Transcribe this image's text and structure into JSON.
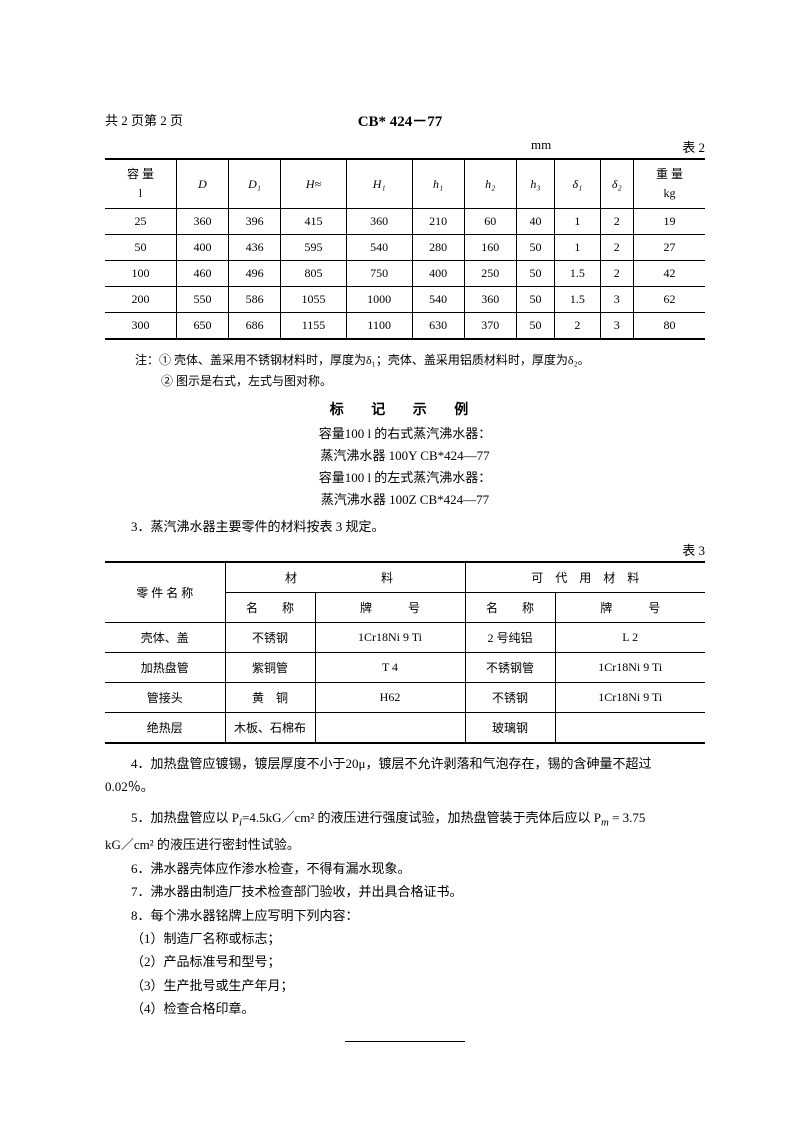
{
  "header": {
    "page_num": "共 2 页第 2 页",
    "doc_title": "CB* 424－77"
  },
  "table2": {
    "unit": "mm",
    "label": "表 2",
    "columns": [
      "容 量",
      "D",
      "D₁",
      "H≈",
      "H₁",
      "h₁",
      "h₂",
      "h₃",
      "δ₁",
      "δ₂",
      "重 量"
    ],
    "col_units_left": "l",
    "col_units_right": "kg",
    "rows": [
      [
        "25",
        "360",
        "396",
        "415",
        "360",
        "210",
        "60",
        "40",
        "1",
        "2",
        "19"
      ],
      [
        "50",
        "400",
        "436",
        "595",
        "540",
        "280",
        "160",
        "50",
        "1",
        "2",
        "27"
      ],
      [
        "100",
        "460",
        "496",
        "805",
        "750",
        "400",
        "250",
        "50",
        "1.5",
        "2",
        "42"
      ],
      [
        "200",
        "550",
        "586",
        "1055",
        "1000",
        "540",
        "360",
        "50",
        "1.5",
        "3",
        "62"
      ],
      [
        "300",
        "650",
        "686",
        "1155",
        "1100",
        "630",
        "370",
        "50",
        "2",
        "3",
        "80"
      ]
    ]
  },
  "notes": {
    "line1": "注：① 壳体、盖采用不锈钢材料时，厚度为δ₁；壳体、盖采用铝质材料时，厚度为δ₂。",
    "line2": "② 图示是右式，左式与图对称。"
  },
  "marking": {
    "title": "标 记 示 例",
    "lines": [
      "容量100 l 的右式蒸汽沸水器：",
      "蒸汽沸水器   100Y  CB*424—77",
      "容量100 l 的左式蒸汽沸水器：",
      "蒸汽沸水器   100Z  CB*424—77"
    ]
  },
  "section3": "3．蒸汽沸水器主要零件的材料按表 3 规定。",
  "table3": {
    "label": "表 3",
    "headers": {
      "part": "零 件 名 称",
      "material": "材　　　料",
      "alt": "可　代　用　材　料",
      "name": "名　　称",
      "grade": "牌　　　号"
    },
    "rows": [
      [
        "壳体、盖",
        "不锈钢",
        "1Cr18Ni 9 Ti",
        "2 号纯铝",
        "L 2"
      ],
      [
        "加热盘管",
        "紫铜管",
        "T 4",
        "不锈钢管",
        "1Cr18Ni 9 Ti"
      ],
      [
        "管接头",
        "黄　铜",
        "H62",
        "不锈钢",
        "1Cr18Ni 9 Ti"
      ],
      [
        "绝热层",
        "木板、石棉布",
        "",
        "玻璃钢",
        ""
      ]
    ]
  },
  "paragraphs": {
    "p4a": "4．加热盘管应镀锡，镀层厚度不小于20μ，镀层不允许剥落和气泡存在，锡的含砷量不超过",
    "p4b": "0.02％。",
    "p5a": "5．加热盘管应以 P",
    "p5b": "=4.5kG／cm² 的液压进行强度试验，加热盘管装于壳体后应以  P",
    "p5c": " = 3.75",
    "p5d": "kG／cm² 的液压进行密封性试验。",
    "p6": "6．沸水器壳体应作渗水检查，不得有漏水现象。",
    "p7": "7．沸水器由制造厂技术检查部门验收，并出具合格证书。",
    "p8": "8．每个沸水器铭牌上应写明下列内容：",
    "sub1": "（1）制造厂名称或标志；",
    "sub2": "（2）产品标准号和型号；",
    "sub3": "（3）生产批号或生产年月；",
    "sub4": "（4）检查合格印章。"
  }
}
